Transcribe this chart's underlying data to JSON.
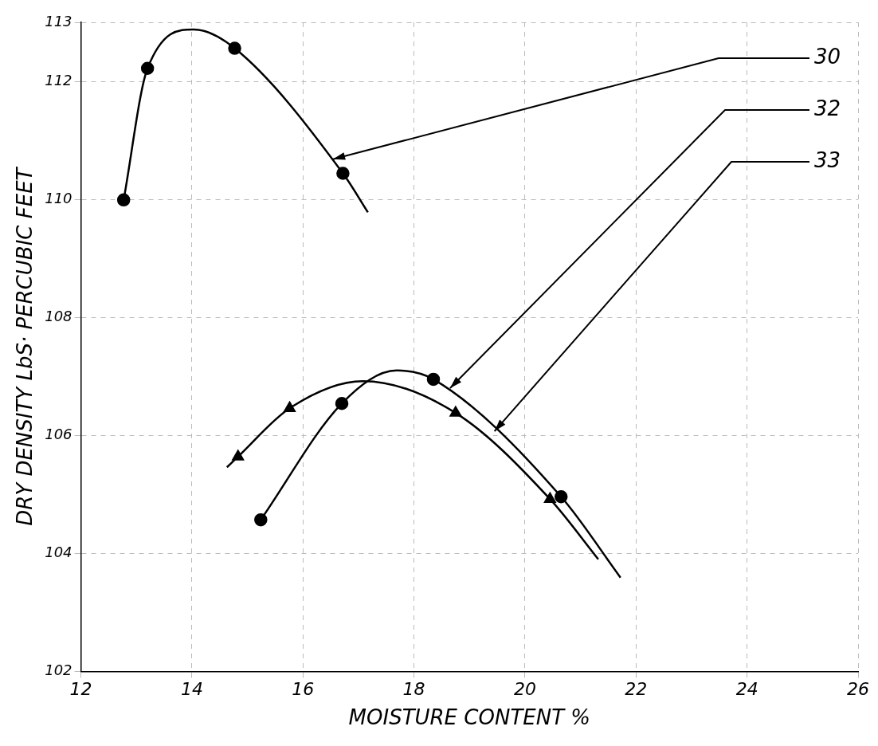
{
  "chart_data": {
    "type": "scatter",
    "xlabel": "MOISTURE CONTENT %",
    "ylabel": "DRY DENSITY LbS· PERCUBIC FEET",
    "xlim": [
      12,
      26
    ],
    "xticks": [
      12,
      14,
      16,
      18,
      20,
      22,
      24,
      26
    ],
    "ylim": [
      102,
      113
    ],
    "yticks": [
      102,
      104,
      106,
      108,
      110,
      112,
      113
    ],
    "grid": true,
    "legend": false,
    "series": [
      {
        "type": "line",
        "marker": "none",
        "color": "#000000",
        "x": [
          12.77,
          13.2,
          14.03,
          14.77,
          16.72,
          17.17
        ],
        "values": [
          109.99,
          112.22,
          112.88,
          112.56,
          110.44,
          109.78
        ]
      },
      {
        "type": "line",
        "marker": "none",
        "color": "#000000",
        "x": [
          15.24,
          16.7,
          17.69,
          18.35,
          20.65,
          21.72
        ],
        "values": [
          104.57,
          106.54,
          107.1,
          106.95,
          104.96,
          103.59
        ]
      },
      {
        "type": "line",
        "marker": "none",
        "color": "#000000",
        "x": [
          14.63,
          14.83,
          15.76,
          17.08,
          18.75,
          20.45,
          21.32
        ],
        "values": [
          105.46,
          105.64,
          106.46,
          106.92,
          106.38,
          104.92,
          103.9
        ]
      },
      {
        "type": "scatter",
        "marker": "circle",
        "color": "#000000",
        "x": [
          12.77,
          13.2,
          14.77,
          16.72
        ],
        "values": [
          109.99,
          112.22,
          112.56,
          110.44
        ]
      },
      {
        "type": "scatter",
        "marker": "circle",
        "color": "#000000",
        "x": [
          15.24,
          16.7,
          18.35,
          20.65
        ],
        "values": [
          104.57,
          106.54,
          106.95,
          104.96
        ]
      },
      {
        "type": "scatter",
        "marker": "triangle",
        "color": "#000000",
        "x": [
          14.83,
          15.76,
          18.75,
          20.45
        ],
        "values": [
          105.64,
          106.46,
          106.38,
          104.92
        ]
      }
    ],
    "annotations": [
      {
        "text": "30",
        "x": 16.54,
        "y": 110.68
      },
      {
        "text": "32",
        "x": 18.65,
        "y": 106.8
      },
      {
        "text": "33",
        "x": 19.45,
        "y": 106.07
      }
    ]
  }
}
